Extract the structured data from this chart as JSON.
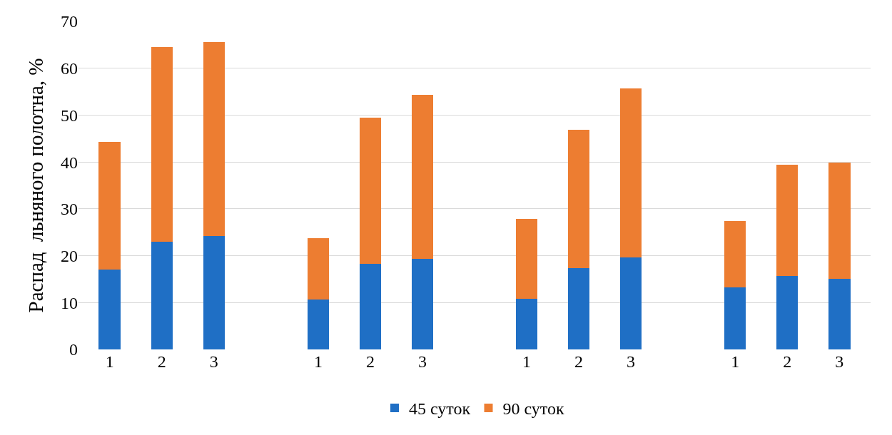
{
  "chart_data": {
    "type": "bar",
    "stacked": true,
    "ylabel": "Распад  льняного полотна, %",
    "categories": [
      "1",
      "2",
      "3",
      null,
      "1",
      "2",
      "3",
      null,
      "1",
      "2",
      "3",
      null,
      "1",
      "2",
      "3"
    ],
    "series": [
      {
        "name": "45 суток",
        "color": "#1f6fc5",
        "values": [
          17,
          23,
          24.2,
          null,
          10.6,
          18.2,
          19.3,
          null,
          10.8,
          17.3,
          19.6,
          null,
          13.2,
          15.7,
          15.1
        ]
      },
      {
        "name": "90 суток",
        "color": "#ed7d31",
        "values": [
          27.3,
          41.5,
          41.4,
          null,
          13.2,
          31.3,
          35,
          null,
          17,
          29.6,
          36.1,
          null,
          14.2,
          23.7,
          24.7
        ]
      }
    ],
    "ylim": [
      0,
      70
    ],
    "yticks": [
      0,
      10,
      20,
      30,
      40,
      50,
      60,
      70
    ],
    "grid": "y",
    "legend": "bottom"
  }
}
